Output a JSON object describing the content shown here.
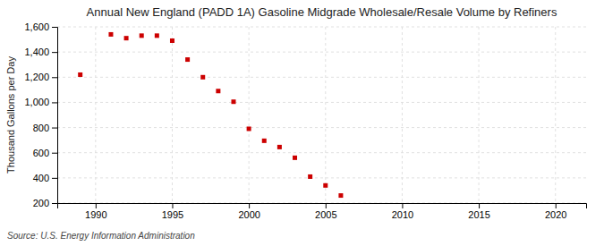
{
  "chart_data": {
    "type": "scatter",
    "title": "Annual New England (PADD 1A) Gasoline Midgrade Wholesale/Resale Volume by Refiners",
    "ylabel": "Thousand Gallons per Day",
    "source": "Source: U.S. Energy Information Administration",
    "x": [
      1989,
      1991,
      1992,
      1993,
      1994,
      1995,
      1996,
      1997,
      1998,
      1999,
      2000,
      2001,
      2002,
      2003,
      2004,
      2005,
      2006
    ],
    "values": [
      1220,
      1540,
      1510,
      1530,
      1530,
      1490,
      1340,
      1200,
      1090,
      1005,
      790,
      695,
      645,
      560,
      410,
      340,
      260
    ],
    "color": "#cc0000",
    "marker": "square",
    "xlim": [
      1987.5,
      2022
    ],
    "ylim": [
      200,
      1600
    ],
    "xticks": [
      1990,
      1995,
      2000,
      2005,
      2010,
      2015,
      2020
    ],
    "yticks": [
      200,
      400,
      600,
      800,
      {
        "value": 1000,
        "label": "1,000"
      },
      {
        "value": 1200,
        "label": "1,200"
      },
      {
        "value": 1400,
        "label": "1,400"
      },
      {
        "value": 1600,
        "label": "1,600"
      }
    ],
    "grid": true
  }
}
